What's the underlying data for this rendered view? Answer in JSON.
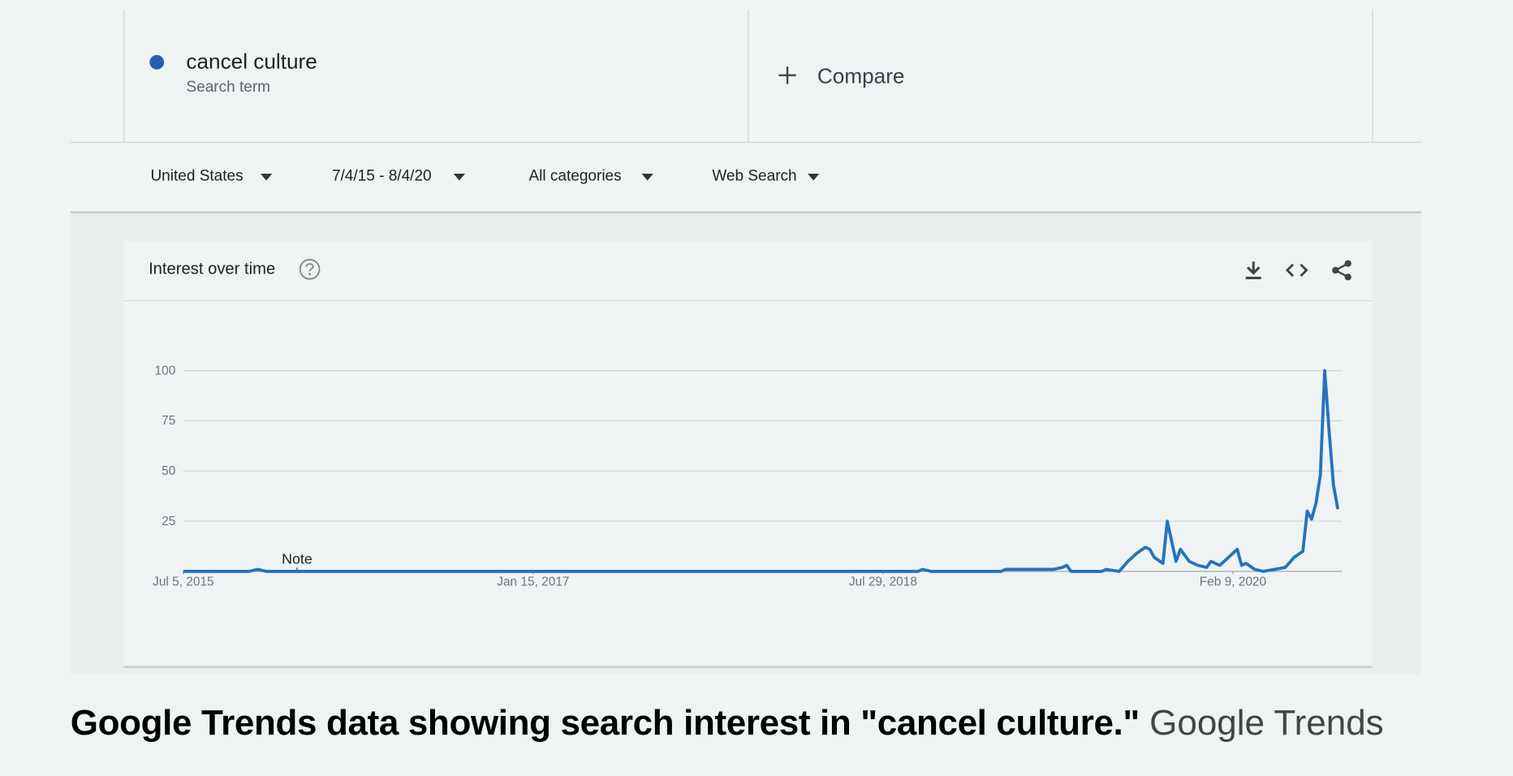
{
  "search_terms": [
    {
      "term": "cancel culture",
      "subtitle": "Search term",
      "color": "#2a5cb3"
    }
  ],
  "compare": "Compare",
  "filters": [
    "United States",
    "7/4/15 - 8/4/20",
    "All categories",
    "Web Search"
  ],
  "chart_data": {
    "type": "line",
    "title": "Interest over time",
    "x": [
      "2015-07-05",
      "2015-10-18",
      "2015-11-01",
      "2015-11-15",
      "2018-09-23",
      "2018-09-30",
      "2018-10-14",
      "2019-02-03",
      "2019-02-10",
      "2019-03-31",
      "2019-04-28",
      "2019-05-12",
      "2019-05-19",
      "2019-05-26",
      "2019-07-14",
      "2019-07-21",
      "2019-08-11",
      "2019-08-25",
      "2019-09-08",
      "2019-09-22",
      "2019-09-29",
      "2019-10-06",
      "2019-10-20",
      "2019-10-27",
      "2019-11-10",
      "2019-11-17",
      "2019-12-01",
      "2019-12-15",
      "2019-12-29",
      "2020-01-05",
      "2020-01-19",
      "2020-02-02",
      "2020-02-16",
      "2020-02-23",
      "2020-03-01",
      "2020-03-15",
      "2020-03-29",
      "2020-05-03",
      "2020-05-17",
      "2020-05-31",
      "2020-06-07",
      "2020-06-14",
      "2020-06-21",
      "2020-06-28",
      "2020-07-05",
      "2020-07-12",
      "2020-07-19",
      "2020-07-26"
    ],
    "series": [
      {
        "color": "#2473bd",
        "values": [
          0,
          0,
          1,
          0,
          0,
          1,
          0,
          0,
          1,
          1,
          1,
          2,
          3,
          0,
          0,
          1,
          0,
          5,
          9,
          12,
          11,
          7,
          4,
          25,
          5,
          11,
          5,
          3,
          2,
          5,
          3,
          7,
          11,
          3,
          4,
          1,
          0,
          2,
          7,
          10,
          30,
          26,
          34,
          48,
          100,
          70,
          43,
          31
        ]
      }
    ],
    "xlim": [
      "2015-07-05",
      "2020-08-02"
    ],
    "xticks": [
      {
        "value": "2015-07-05",
        "label": "Jul 5, 2015"
      },
      {
        "value": "2017-01-15",
        "label": "Jan 15, 2017"
      },
      {
        "value": "2018-07-29",
        "label": "Jul 29, 2018"
      },
      {
        "value": "2020-02-09",
        "label": "Feb 9, 2020"
      }
    ],
    "ylim": [
      0,
      100
    ],
    "yticks": [
      25,
      50,
      75,
      100
    ],
    "grid": true,
    "annotations": [
      {
        "x": "2016-01-03",
        "text": "Note"
      }
    ]
  },
  "caption": {
    "text": "Google Trends data showing search interest in \"cancel culture.\"",
    "credit": "Google Trends"
  }
}
